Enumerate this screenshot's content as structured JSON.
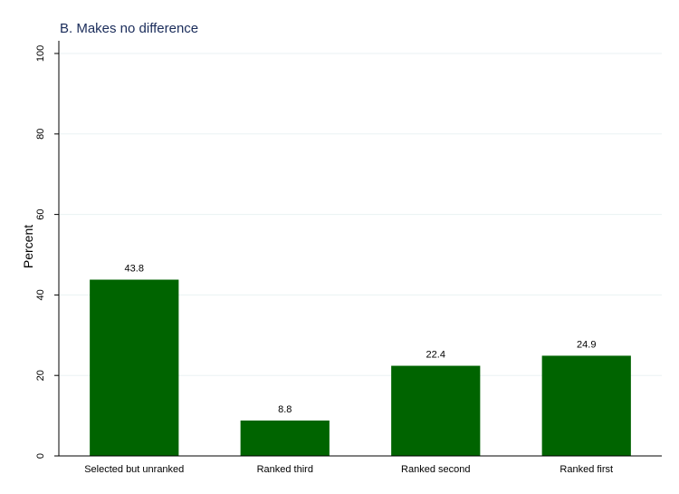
{
  "chart_data": {
    "type": "bar",
    "title": "B. Makes no difference",
    "xlabel": "",
    "ylabel": "Percent",
    "ylim": [
      0,
      100
    ],
    "yticks": [
      0,
      20,
      40,
      60,
      80,
      100
    ],
    "ytick_labels": [
      "0",
      "20",
      "40",
      "60",
      "80",
      "100"
    ],
    "grid": true,
    "categories": [
      "Selected but unranked",
      "Ranked third",
      "Ranked second",
      "Ranked first"
    ],
    "values": [
      43.8,
      8.8,
      22.4,
      24.9
    ],
    "data_labels": [
      "43.8",
      "8.8",
      "22.4",
      "24.9"
    ],
    "colors": {
      "bar": "#006400",
      "grid": "#eaf2f3",
      "axis": "#000000",
      "title": "#1a2c5a"
    }
  }
}
